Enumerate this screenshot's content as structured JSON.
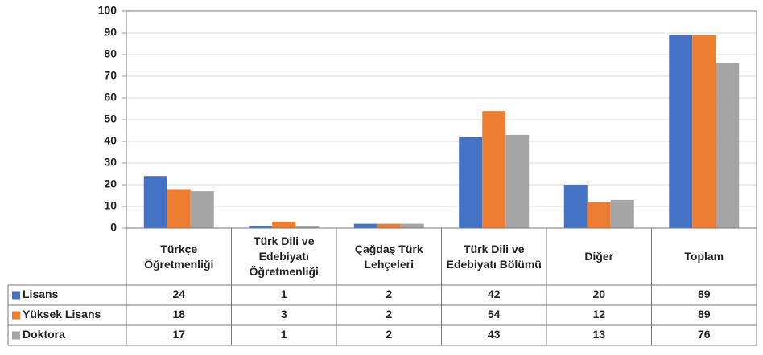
{
  "chart_data": {
    "type": "bar",
    "categories": [
      "Türkçe Öğretmenliği",
      "Türk Dili ve Edebiyatı Öğretmenliği",
      "Çağdaş Türk Lehçeleri",
      "Türk Dili ve Edebiyatı Bölümü",
      "Diğer",
      "Toplam"
    ],
    "series": [
      {
        "name": "Lisans",
        "color": "#4472c4",
        "values": [
          24,
          1,
          2,
          42,
          20,
          89
        ]
      },
      {
        "name": "Yüksek Lisans",
        "color": "#ed7d31",
        "values": [
          18,
          3,
          2,
          54,
          12,
          89
        ]
      },
      {
        "name": "Doktora",
        "color": "#a5a5a5",
        "values": [
          17,
          1,
          2,
          43,
          13,
          76
        ]
      }
    ],
    "ylim": [
      0,
      100
    ],
    "yticks": [
      0,
      10,
      20,
      30,
      40,
      50,
      60,
      70,
      80,
      90,
      100
    ],
    "grid": true
  }
}
